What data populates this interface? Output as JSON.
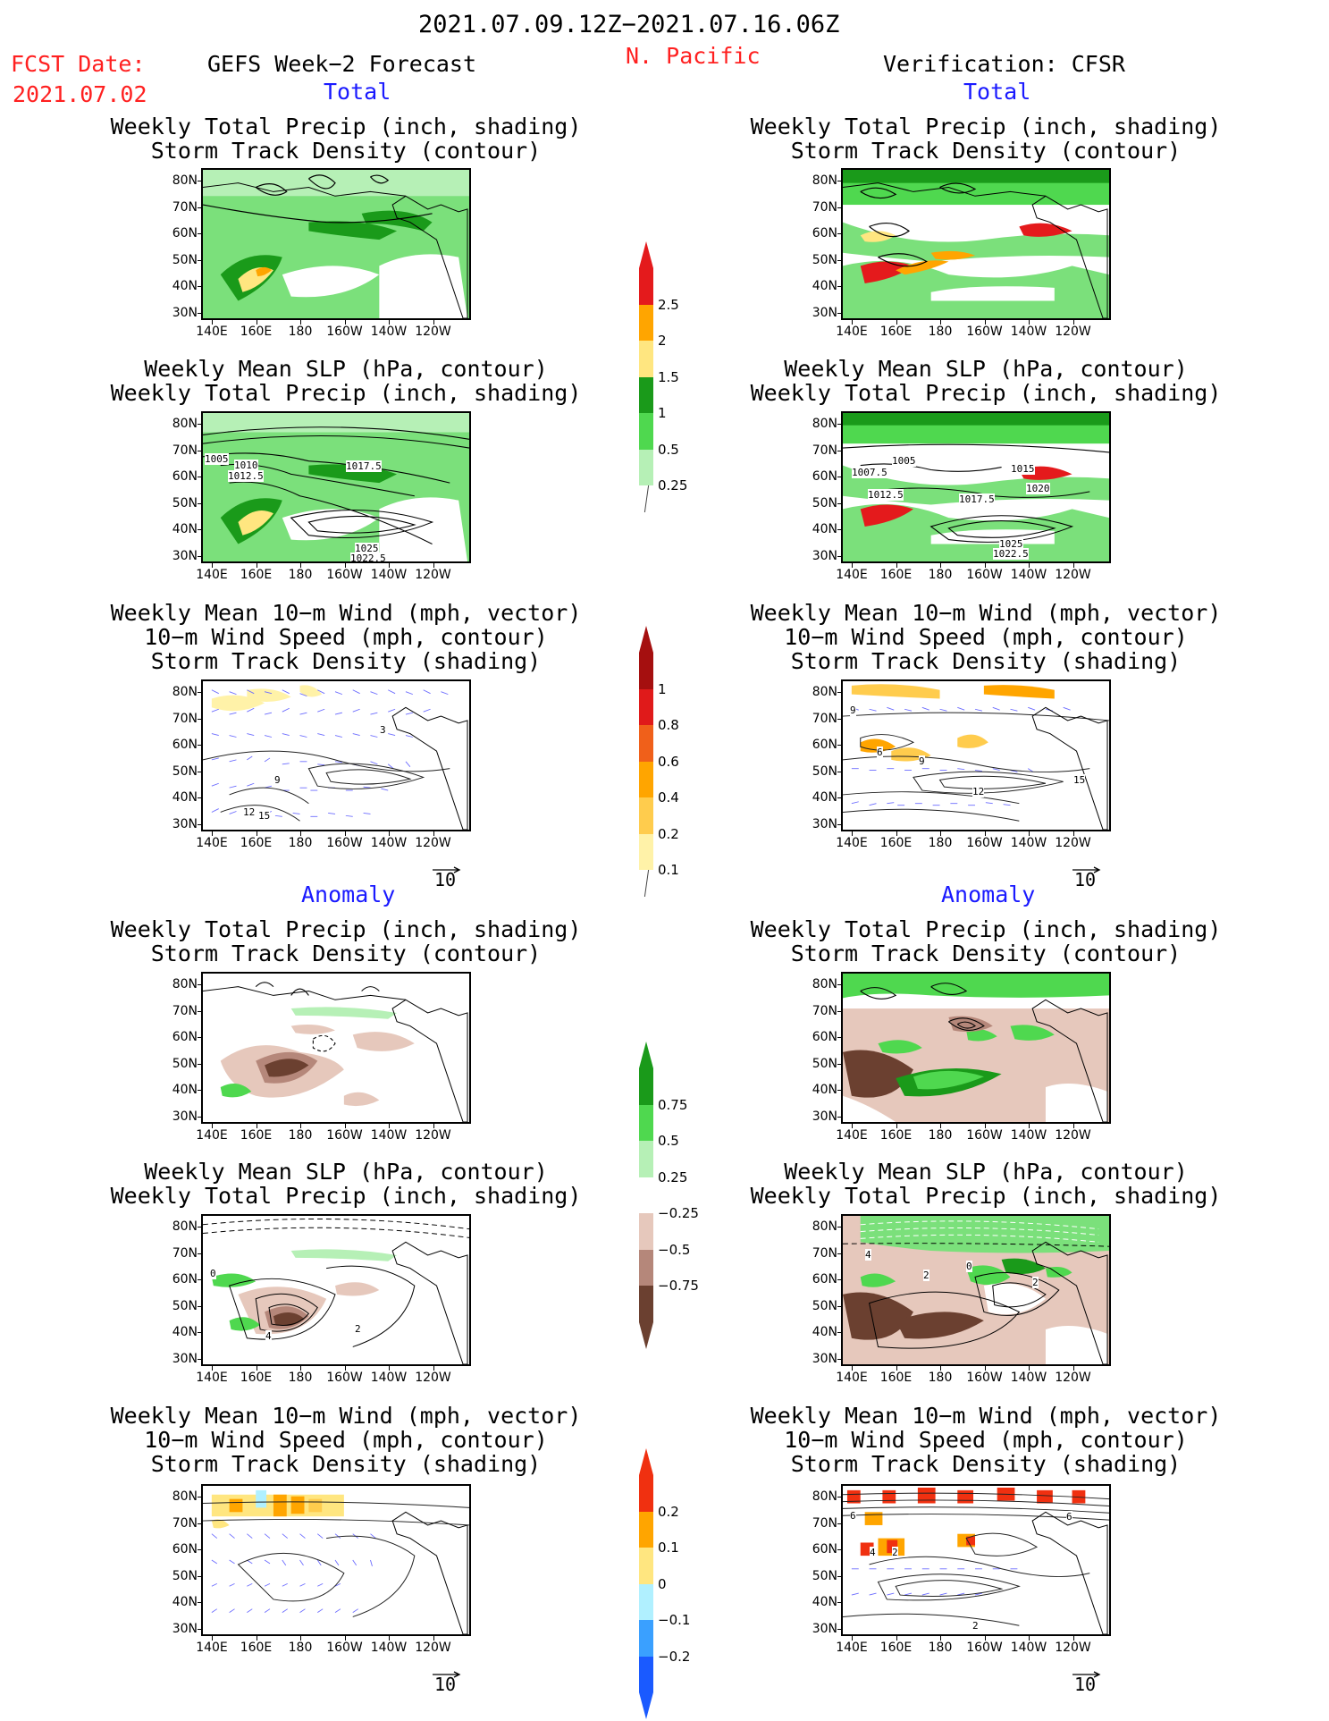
{
  "header": {
    "period": "2021.07.09.12Z−2021.07.16.06Z",
    "region": "N. Pacific",
    "fcst_label": "FCST Date:",
    "fcst_date": "2021.07.02",
    "left_title": "GEFS Week−2 Forecast",
    "right_title": "Verification: CFSR"
  },
  "sections": {
    "total": "Total",
    "anomaly": "Anomaly"
  },
  "panel_titles": {
    "precip_storm": [
      "Weekly Total Precip (inch, shading)",
      "Storm Track Density (contour)"
    ],
    "slp_precip": [
      "Weekly Mean SLP (hPa, contour)",
      "Weekly Total Precip (inch, shading)"
    ],
    "wind_storm": [
      "Weekly Mean 10−m Wind (mph, vector)",
      "10−m Wind Speed (mph, contour)",
      "Storm Track Density (shading)"
    ]
  },
  "axes": {
    "lat_labels": [
      "80N",
      "70N",
      "60N",
      "50N",
      "40N",
      "30N"
    ],
    "lon_labels": [
      "140E",
      "160E",
      "180",
      "160W",
      "140W",
      "120W"
    ]
  },
  "vector_ref": "10",
  "contour_labels": {
    "slp_left": [
      "1005",
      "1010",
      "1012.5",
      "1017.5",
      "1025",
      "1022.5"
    ],
    "slp_right": [
      "1007.5",
      "1005",
      "1012.5",
      "1017.5",
      "1015",
      "1020",
      "1025",
      "1022.5"
    ],
    "wind_left": [
      "9",
      "12",
      "15",
      "3"
    ],
    "wind_right": [
      "9",
      "6",
      "9",
      "12",
      "15"
    ],
    "slp_anom_left": [
      "0",
      "4",
      "2"
    ],
    "slp_anom_right": [
      "4",
      "2",
      "0",
      "2"
    ],
    "wind_anom_right": [
      "6",
      "2",
      "4",
      "2",
      "6"
    ]
  },
  "colorbars": {
    "precip_total": {
      "labels": [
        "2.5",
        "2",
        "1.5",
        "1",
        "0.5",
        "0.25"
      ],
      "colors": [
        "#e41a1c",
        "#ffa500",
        "#ffe680",
        "#1a9a1a",
        "#4fd84f",
        "#b6f0b6"
      ]
    },
    "storm_total": {
      "labels": [
        "1",
        "0.8",
        "0.6",
        "0.4",
        "0.2",
        "0.1"
      ],
      "colors": [
        "#a50f0f",
        "#e01a1a",
        "#f0601a",
        "#ffa500",
        "#ffcc4d",
        "#fff2a8"
      ]
    },
    "precip_anom": {
      "labels": [
        "0.75",
        "0.5",
        "0.25",
        "−0.25",
        "−0.5",
        "−0.75"
      ],
      "colors": [
        "#1a9a1a",
        "#4fd84f",
        "#b6f0b6",
        "#ffffff",
        "#e6c8bc",
        "#b5877a",
        "#6b4030"
      ]
    },
    "storm_anom": {
      "labels": [
        "0.2",
        "0.1",
        "0",
        "−0.1",
        "−0.2"
      ],
      "colors": [
        "#f03010",
        "#ffa500",
        "#ffe680",
        "#b0f0ff",
        "#3aa0ff",
        "#1a5aff"
      ]
    }
  }
}
